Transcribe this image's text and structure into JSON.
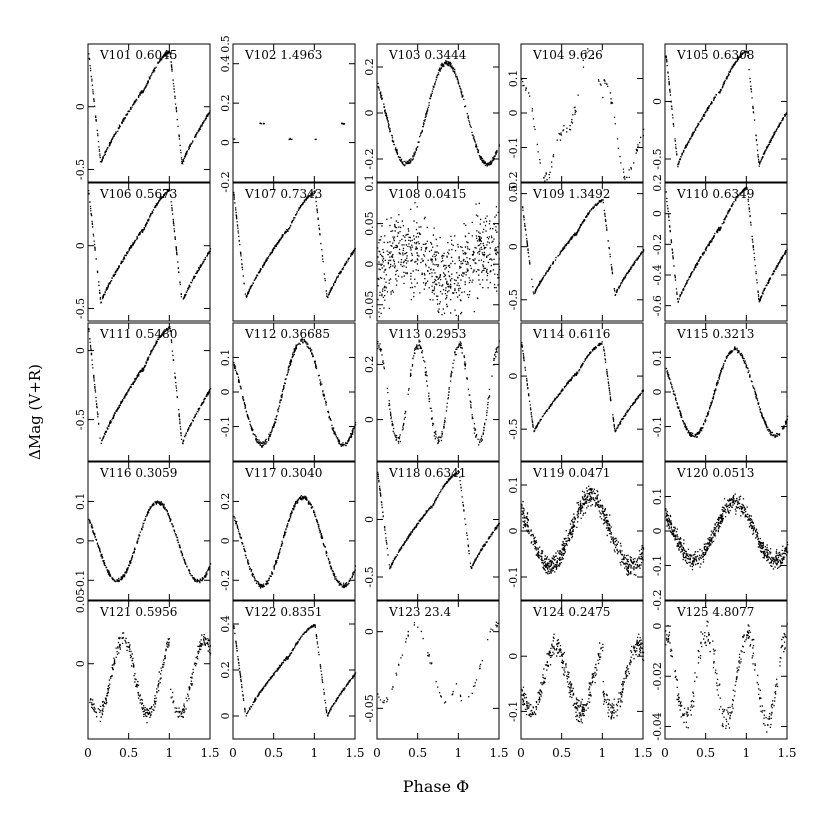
{
  "figure": {
    "xlabel": "Phase Φ",
    "ylabel": "ΔMag (V+R)"
  },
  "chart_data": {
    "type": "scatter",
    "xlabel": "Phase Φ",
    "ylabel": "ΔMag (V+R)",
    "xlim": [
      0,
      1.5
    ],
    "x_ticks": [
      "0",
      "0.5",
      "1",
      "1.5"
    ],
    "y_inverted": true,
    "panels": [
      {
        "star": "V101",
        "period": "0.6045",
        "shape": "rrab",
        "ylim": [
          0.5,
          -0.6
        ],
        "yticks": [
          "-0.5",
          "0"
        ],
        "amp": 0.9,
        "mean": 0.0
      },
      {
        "star": "V102",
        "period": "1.4963",
        "shape": "eclipse",
        "ylim": [
          0.5,
          -0.2
        ],
        "yticks": [
          "-0.2",
          "0",
          "0.2",
          "0.4",
          "0.5"
        ],
        "amp": 0.4,
        "mean": -0.1
      },
      {
        "star": "V103",
        "period": "0.3444",
        "shape": "rrc",
        "ylim": [
          0.3,
          -0.3
        ],
        "yticks": [
          "-0.2",
          "0",
          "0.2"
        ],
        "amp": 0.44,
        "mean": 0.0
      },
      {
        "star": "V104",
        "period": "9.626",
        "shape": "irregular",
        "ylim": [
          0.2,
          -0.2
        ],
        "yticks": [
          "-0.2",
          "-0.1",
          "0",
          "0.1"
        ],
        "amp": 0.3,
        "mean": 0.0
      },
      {
        "star": "V105",
        "period": "0.6308",
        "shape": "rrab",
        "ylim": [
          0.5,
          -0.7
        ],
        "yticks": [
          "-0.5",
          "0"
        ],
        "amp": 1.0,
        "mean": -0.05
      },
      {
        "star": "V106",
        "period": "0.5673",
        "shape": "rrab",
        "ylim": [
          0.5,
          -0.6
        ],
        "yticks": [
          "-0.5",
          "0"
        ],
        "amp": 0.9,
        "mean": 0.0
      },
      {
        "star": "V107",
        "period": "0.7343",
        "shape": "rrab",
        "ylim": [
          0.4,
          -0.5
        ],
        "yticks": [],
        "amp": 0.7,
        "mean": 0.0
      },
      {
        "star": "V108",
        "period": "0.0415",
        "shape": "noisy",
        "ylim": [
          0.1,
          -0.07
        ],
        "yticks": [
          "-0.05",
          "0",
          "0.05",
          "0.1"
        ],
        "amp": 0.06,
        "mean": 0.0
      },
      {
        "star": "V109",
        "period": "1.3492",
        "shape": "rrab",
        "ylim": [
          0.6,
          -0.7
        ],
        "yticks": [
          "-0.5",
          "0",
          "0.5"
        ],
        "amp": 0.9,
        "mean": 0.0
      },
      {
        "star": "V110",
        "period": "0.6349",
        "shape": "rrab",
        "ylim": [
          0.2,
          -0.7
        ],
        "yticks": [
          "-0.6",
          "-0.4",
          "-0.2",
          "0",
          "0.2"
        ],
        "amp": 0.75,
        "mean": -0.2
      },
      {
        "star": "V111",
        "period": "0.5480",
        "shape": "rrab",
        "ylim": [
          0.2,
          -0.8
        ],
        "yticks": [
          "-0.5",
          "0"
        ],
        "amp": 0.85,
        "mean": -0.25
      },
      {
        "star": "V112",
        "period": "0.36685",
        "shape": "rrc",
        "ylim": [
          0.2,
          -0.2
        ],
        "yticks": [
          "-0.1",
          "0",
          "0.1"
        ],
        "amp": 0.3,
        "mean": 0.0
      },
      {
        "star": "V113",
        "period": "0.2953",
        "shape": "double",
        "ylim": [
          0.35,
          -0.15
        ],
        "yticks": [
          "0",
          "0.2"
        ],
        "amp": 0.35,
        "mean": 0.1
      },
      {
        "star": "V114",
        "period": "0.6116",
        "shape": "rrab",
        "ylim": [
          0.5,
          -0.8
        ],
        "yticks": [
          "-0.5",
          "0"
        ],
        "amp": 0.85,
        "mean": -0.1
      },
      {
        "star": "V115",
        "period": "0.3213",
        "shape": "rrc",
        "ylim": [
          0.2,
          -0.2
        ],
        "yticks": [
          "-0.1",
          "0",
          "0.1"
        ],
        "amp": 0.25,
        "mean": 0.0
      },
      {
        "star": "V116",
        "period": "0.3059",
        "shape": "rrc",
        "ylim": [
          0.2,
          -0.15
        ],
        "yticks": [
          "-0.1",
          "0",
          "0.1"
        ],
        "amp": 0.2,
        "mean": 0.0
      },
      {
        "star": "V117",
        "period": "0.3040",
        "shape": "rrc",
        "ylim": [
          0.4,
          -0.3
        ],
        "yticks": [
          "-0.2",
          "0",
          "0.2"
        ],
        "amp": 0.45,
        "mean": 0.0
      },
      {
        "star": "V118",
        "period": "0.6341",
        "shape": "rrab",
        "ylim": [
          0.5,
          -0.7
        ],
        "yticks": [
          "-0.5",
          "0"
        ],
        "amp": 0.85,
        "mean": 0.0
      },
      {
        "star": "V119",
        "period": "0.0471",
        "shape": "sine_noisy",
        "ylim": [
          0.15,
          -0.15
        ],
        "yticks": [
          "-0.1",
          "0",
          "0.1"
        ],
        "amp": 0.15,
        "mean": 0.0
      },
      {
        "star": "V120",
        "period": "0.0513",
        "shape": "sine_noisy",
        "ylim": [
          0.2,
          -0.2
        ],
        "yticks": [
          "-0.2",
          "-0.1",
          "0",
          "0.1"
        ],
        "amp": 0.17,
        "mean": 0.0
      },
      {
        "star": "V121",
        "period": "0.5956",
        "shape": "triple",
        "ylim": [
          0.05,
          -0.06
        ],
        "yticks": [
          "0",
          "0.05"
        ],
        "amp": 0.06,
        "mean": -0.01
      },
      {
        "star": "V122",
        "period": "0.8351",
        "shape": "rrab",
        "ylim": [
          0.5,
          -0.1
        ],
        "yticks": [
          "0",
          "0.2",
          "0.4"
        ],
        "amp": 0.4,
        "mean": 0.2
      },
      {
        "star": "V123",
        "period": "23.4",
        "shape": "sparse",
        "ylim": [
          0.02,
          -0.07
        ],
        "yticks": [
          "-0.05",
          "0"
        ],
        "amp": 0.05,
        "mean": -0.02
      },
      {
        "star": "V124",
        "period": "0.2475",
        "shape": "triple_noisy",
        "ylim": [
          0.1,
          -0.15
        ],
        "yticks": [
          "-0.1",
          "0"
        ],
        "amp": 0.12,
        "mean": -0.04
      },
      {
        "star": "V125",
        "period": "4.8077",
        "shape": "double_noisy",
        "ylim": [
          0.01,
          -0.045
        ],
        "yticks": [
          "-0.04",
          "-0.02",
          "0"
        ],
        "amp": 0.035,
        "mean": -0.02
      }
    ]
  }
}
